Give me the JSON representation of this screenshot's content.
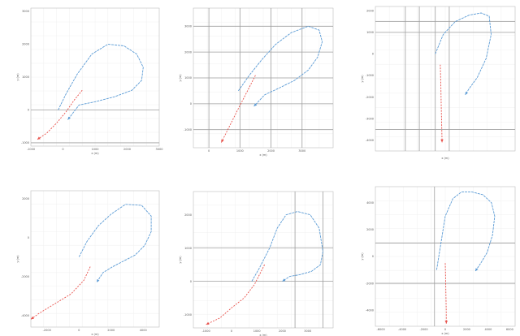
{
  "chart_data": [
    {
      "type": "line",
      "title": "",
      "xlabel": "x (m)",
      "ylabel": "y (m)",
      "xticks": [
        "-1000",
        "0",
        "1000",
        "2000",
        "3000"
      ],
      "yticks": [
        "3000",
        "2000",
        "1000",
        "0",
        "-1000"
      ],
      "xlim": [
        -1000,
        3000
      ],
      "ylim": [
        -1100,
        3100
      ],
      "hlines": [
        0,
        -1000
      ],
      "vlines": [],
      "series": [
        {
          "color": "#5b9bd5",
          "x": [
            -150,
            100,
            450,
            900,
            1400,
            1900,
            2300,
            2500,
            2450,
            2150,
            1600,
            1000,
            500,
            150
          ],
          "y": [
            0,
            500,
            1100,
            1700,
            2000,
            1950,
            1700,
            1300,
            900,
            600,
            400,
            250,
            150,
            -300
          ]
        },
        {
          "color": "#e8504a",
          "x": [
            600,
            350,
            100,
            -200,
            -500,
            -800
          ],
          "y": [
            600,
            300,
            -50,
            -400,
            -700,
            -900
          ]
        }
      ]
    },
    {
      "type": "line",
      "title": "",
      "xlabel": "x (m)",
      "ylabel": "y (m)",
      "xticks": [
        "0",
        "1000",
        "2000",
        "3000"
      ],
      "yticks": [
        "3000",
        "2000",
        "1000",
        "0",
        "-1000"
      ],
      "xlim": [
        -500,
        4000
      ],
      "ylim": [
        -1700,
        3700
      ],
      "hlines": [
        3000,
        2000,
        1000,
        0,
        -1000
      ],
      "vlines": [
        0,
        1000,
        2000,
        3000
      ],
      "series": [
        {
          "color": "#5b9bd5",
          "x": [
            950,
            1300,
            1700,
            2150,
            2650,
            3200,
            3550,
            3650,
            3500,
            3200,
            2750,
            2250,
            1800,
            1450
          ],
          "y": [
            500,
            1100,
            1700,
            2300,
            2750,
            3000,
            2850,
            2400,
            1800,
            1300,
            900,
            600,
            350,
            -100
          ]
        },
        {
          "color": "#e8504a",
          "x": [
            1500,
            1200,
            900,
            650,
            400
          ],
          "y": [
            1100,
            400,
            -300,
            -900,
            -1500
          ]
        }
      ]
    },
    {
      "type": "line",
      "title": "",
      "xlabel": "x (m)",
      "ylabel": "y (m)",
      "xticks": [],
      "yticks": [
        "2000",
        "1000",
        "0",
        "-1000",
        "-2000",
        "-3000",
        "-4000"
      ],
      "xlim": [
        -3000,
        4000
      ],
      "ylim": [
        -4500,
        2200
      ],
      "hlines": [
        1500,
        1000,
        -3500
      ],
      "vlines": [
        -1500,
        -800,
        0,
        700
      ],
      "series": [
        {
          "color": "#5b9bd5",
          "x": [
            0,
            400,
            1000,
            1700,
            2300,
            2700,
            2800,
            2550,
            2100,
            1700,
            1500
          ],
          "y": [
            0,
            900,
            1500,
            1800,
            1900,
            1750,
            900,
            -200,
            -1100,
            -1600,
            -1900
          ]
        },
        {
          "color": "#e8504a",
          "x": [
            250,
            280,
            300,
            320,
            340
          ],
          "y": [
            -500,
            -1500,
            -2500,
            -3300,
            -4100
          ]
        }
      ]
    },
    {
      "type": "line",
      "title": "",
      "xlabel": "x (m)",
      "ylabel": "y (m)",
      "xticks": [
        "-2000",
        "0",
        "2000",
        "4000"
      ],
      "yticks": [
        "2000",
        "0",
        "-2000",
        "-4000"
      ],
      "xlim": [
        -3000,
        5000
      ],
      "ylim": [
        -4600,
        2400
      ],
      "hlines": [],
      "vlines": [],
      "series": [
        {
          "color": "#5b9bd5",
          "x": [
            0,
            500,
            1200,
            2000,
            2900,
            3900,
            4500,
            4500,
            4100,
            3500,
            2800,
            2100,
            1500,
            1100
          ],
          "y": [
            -1000,
            -200,
            600,
            1200,
            1700,
            1650,
            1100,
            300,
            -400,
            -900,
            -1200,
            -1500,
            -1800,
            -2300
          ]
        },
        {
          "color": "#e8504a",
          "x": [
            700,
            300,
            -500,
            -1500,
            -2500,
            -3000
          ],
          "y": [
            -1500,
            -2200,
            -2900,
            -3400,
            -3900,
            -4200
          ]
        }
      ]
    },
    {
      "type": "line",
      "title": "",
      "xlabel": "x (m)",
      "ylabel": "y (m)",
      "xticks": [
        "-1000",
        "0",
        "1000",
        "2000",
        "3000"
      ],
      "yticks": [
        "2000",
        "1000",
        "0",
        "-1000"
      ],
      "xlim": [
        -1500,
        4000
      ],
      "ylim": [
        -1400,
        2700
      ],
      "hlines": [
        1000,
        0
      ],
      "vlines": [
        2500,
        3600
      ],
      "series": [
        {
          "color": "#5b9bd5",
          "x": [
            800,
            1100,
            1500,
            1800,
            2150,
            2600,
            3100,
            3450,
            3600,
            3500,
            3150,
            2700,
            2300,
            2000
          ],
          "y": [
            0,
            400,
            1000,
            1600,
            2000,
            2100,
            2000,
            1600,
            900,
            500,
            300,
            200,
            150,
            0
          ]
        },
        {
          "color": "#e8504a",
          "x": [
            1300,
            900,
            500,
            0,
            -450,
            -1000
          ],
          "y": [
            500,
            -100,
            -500,
            -800,
            -1100,
            -1300
          ]
        }
      ]
    },
    {
      "type": "line",
      "title": "",
      "xlabel": "x (m)",
      "ylabel": "y (m)",
      "xticks": [
        "-6000",
        "-4000",
        "-2000",
        "0",
        "2000",
        "4000",
        "6000"
      ],
      "yticks": [
        "4000",
        "2000",
        "0",
        "-2000",
        "-4000"
      ],
      "xlim": [
        -6500,
        6500
      ],
      "ylim": [
        -5200,
        5200
      ],
      "hlines": [
        1000,
        -2000
      ],
      "vlines": [
        -1000
      ],
      "series": [
        {
          "color": "#5b9bd5",
          "x": [
            -800,
            -400,
            0,
            700,
            1500,
            2500,
            3500,
            4300,
            4600,
            4400,
            3900,
            3300,
            2800
          ],
          "y": [
            -1000,
            1000,
            3000,
            4300,
            4800,
            4800,
            4600,
            4000,
            3000,
            1600,
            300,
            -500,
            -1100
          ]
        },
        {
          "color": "#e8504a",
          "x": [
            0,
            30,
            60,
            90,
            100
          ],
          "y": [
            -500,
            -1500,
            -2800,
            -4000,
            -5000
          ]
        }
      ]
    }
  ]
}
